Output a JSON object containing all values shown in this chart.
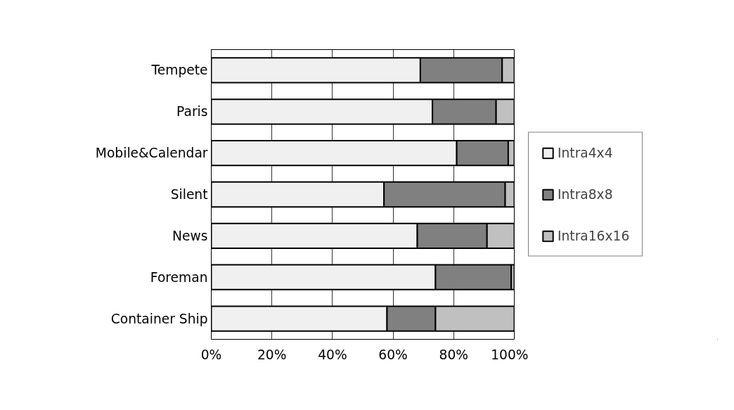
{
  "chart_data": {
    "type": "bar",
    "orientation": "horizontal",
    "stacked": true,
    "categories": [
      "Tempete",
      "Paris",
      "Mobile&Calendar",
      "Silent",
      "News",
      "Foreman",
      "Container Ship"
    ],
    "series": [
      {
        "name": "Intra4x4",
        "color": "#f0f0f0",
        "values": [
          69,
          73,
          81,
          57,
          68,
          74,
          58
        ]
      },
      {
        "name": "Intra8x8",
        "color": "#808080",
        "values": [
          27,
          21,
          17,
          40,
          23,
          25,
          16
        ]
      },
      {
        "name": "Intra16x16",
        "color": "#c0c0c0",
        "values": [
          4,
          6,
          2,
          3,
          9,
          1,
          26
        ]
      }
    ],
    "xlim": [
      0,
      100
    ],
    "xticks": [
      {
        "value": 0,
        "label": "0%"
      },
      {
        "value": 20,
        "label": "20%"
      },
      {
        "value": 40,
        "label": "40%"
      },
      {
        "value": 60,
        "label": "60%"
      },
      {
        "value": 80,
        "label": "80%"
      },
      {
        "value": 100,
        "label": "100%"
      }
    ],
    "grid": "x",
    "legend": "right"
  }
}
